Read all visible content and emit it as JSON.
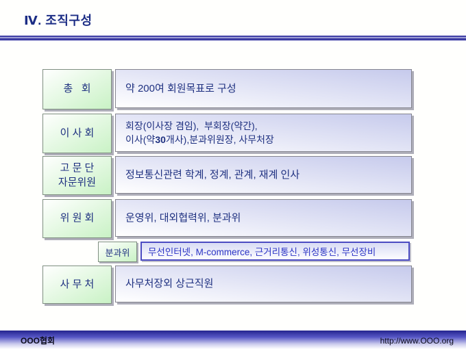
{
  "title": {
    "text": "Ⅳ. 조직구성"
  },
  "rows": [
    {
      "label": "총   회",
      "desc": "약 200여 회원목표로 구성"
    },
    {
      "label": "이 사 회",
      "desc_line1": "회장(이사장 겸임),  부회장(약간),",
      "desc_line2_parts": [
        "이사(약",
        "30",
        "개사),분과위원장, 사무처장"
      ]
    },
    {
      "label_line1": "고 문 단",
      "label_line2": "자문위원",
      "desc": "정보통신관련 학계, 정계, 관계, 재계 인사"
    },
    {
      "label": "위 원 회",
      "desc": "운영위, 대외협력위, 분과위"
    },
    {
      "label": "사 무 처",
      "desc": "사무처장외 상근직원"
    }
  ],
  "subcommittee": {
    "label": "분과위",
    "desc": "무선인터넷, M-commerce, 근거리통신, 위성통신, 무선장비"
  },
  "footer": {
    "org": "OOO협회",
    "url": "http://www.OOO.org"
  },
  "colors": {
    "title_text": "#1c2d85",
    "body_text": "#1e3080",
    "subcommittee_text": "#2d35c5",
    "green_fill": "#c9f2c5",
    "lavender_fill": "#c6caec",
    "divider_blue": "#3c3ca2",
    "footer_blue": "#24248e"
  }
}
